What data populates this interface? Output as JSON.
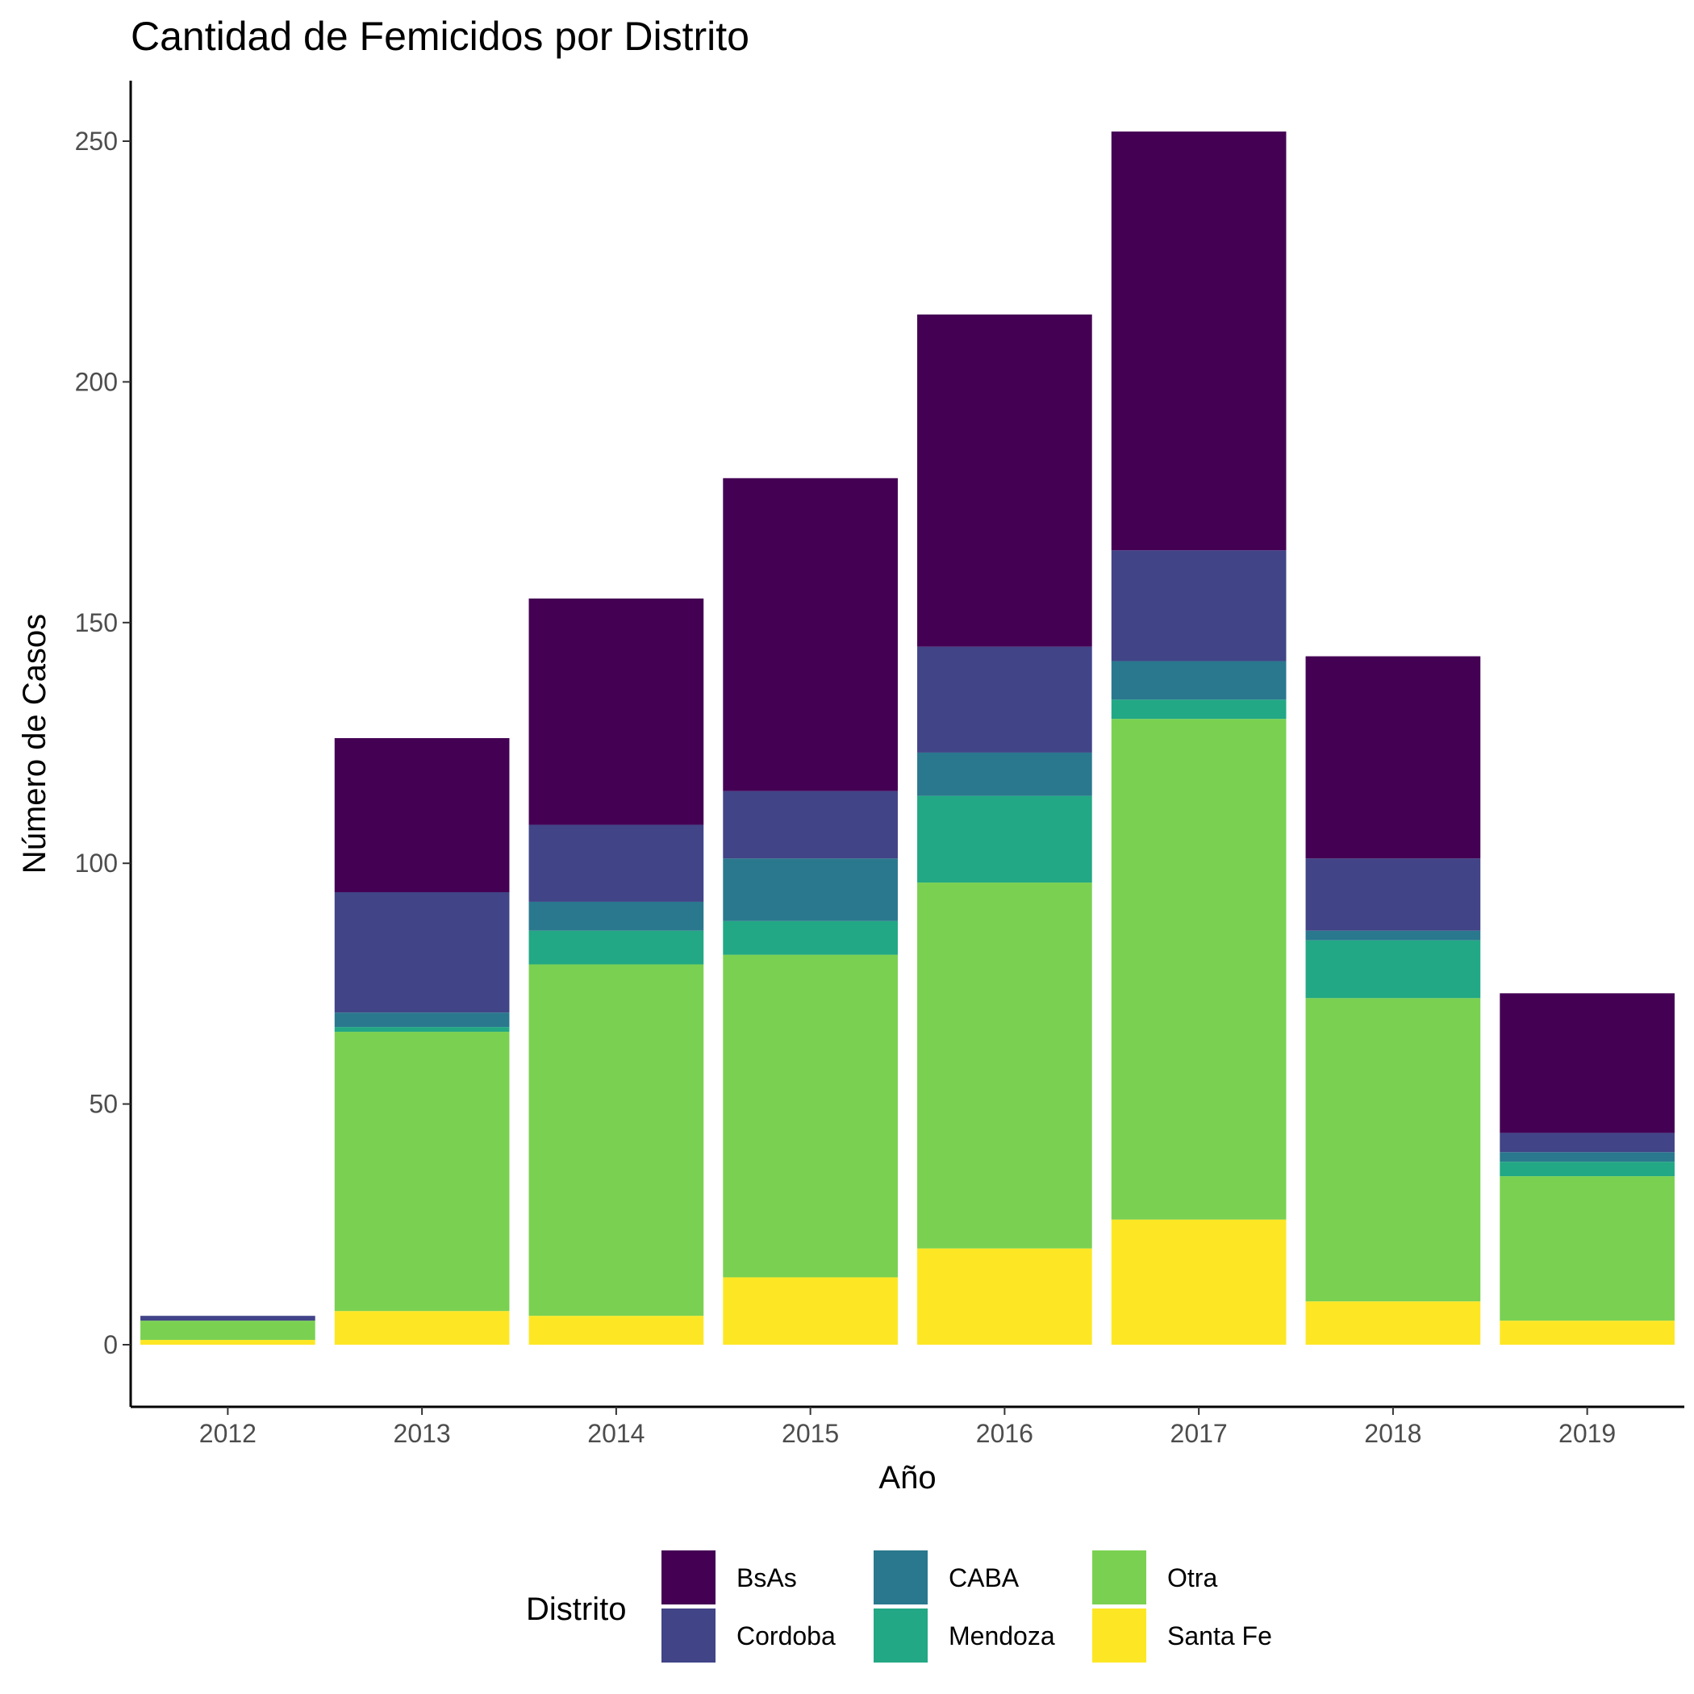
{
  "chart_data": {
    "type": "bar",
    "stacked": true,
    "title": "Cantidad de Femicidos por Distrito",
    "xlabel": "Año",
    "ylabel": "Número de Casos",
    "categories": [
      "2012",
      "2013",
      "2014",
      "2015",
      "2016",
      "2017",
      "2018",
      "2019"
    ],
    "ylim": [
      -12,
      264
    ],
    "yticks": [
      0,
      50,
      100,
      150,
      200,
      250
    ],
    "grid": false,
    "legend": {
      "title": "Distrito",
      "position": "bottom"
    },
    "series": [
      {
        "name": "Santa Fe",
        "color": "#FDE725",
        "values": [
          1,
          7,
          6,
          14,
          20,
          26,
          9,
          5
        ]
      },
      {
        "name": "Otra",
        "color": "#7AD151",
        "values": [
          4,
          58,
          73,
          67,
          76,
          104,
          63,
          30
        ]
      },
      {
        "name": "Mendoza",
        "color": "#22A884",
        "values": [
          0,
          1,
          7,
          7,
          18,
          4,
          12,
          3
        ]
      },
      {
        "name": "CABA",
        "color": "#2A788E",
        "values": [
          0,
          3,
          6,
          13,
          9,
          8,
          2,
          2
        ]
      },
      {
        "name": "Cordoba",
        "color": "#414487",
        "values": [
          1,
          25,
          16,
          14,
          22,
          23,
          15,
          4
        ]
      },
      {
        "name": "BsAs",
        "color": "#440154",
        "values": [
          0,
          32,
          47,
          65,
          69,
          87,
          42,
          29
        ]
      }
    ],
    "legend_order": [
      "BsAs",
      "Cordoba",
      "CABA",
      "Mendoza",
      "Otra",
      "Santa Fe"
    ]
  }
}
